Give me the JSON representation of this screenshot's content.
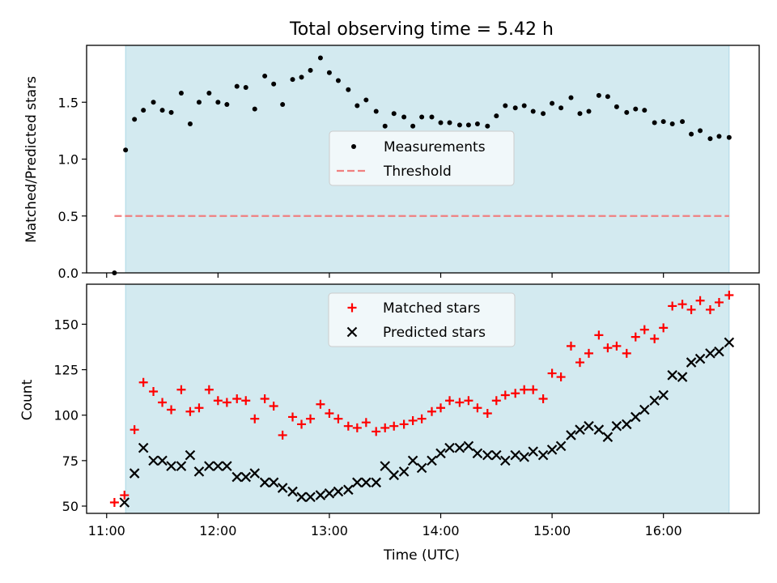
{
  "title": "Total observing time = 5.42 h",
  "chart_data": [
    {
      "type": "scatter",
      "panel": "top",
      "ylabel": "Matched/Predicted stars",
      "xlabel": "",
      "x_unit": "hours (UTC)",
      "xlim": [
        10.82,
        16.86
      ],
      "ylim": [
        0.0,
        2.0
      ],
      "yticks": [
        0.0,
        0.5,
        1.0,
        1.5
      ],
      "ytick_labels": [
        "0.0",
        "0.5",
        "1.0",
        "1.5"
      ],
      "observing_window": [
        11.17,
        16.59
      ],
      "threshold": {
        "name": "Threshold",
        "value": 0.5,
        "x_range": [
          11.07,
          16.59
        ]
      },
      "legend_position": "center",
      "series": [
        {
          "name": "Measurements",
          "marker": "dot",
          "color": "#000000",
          "x": [
            11.07,
            11.17,
            11.25,
            11.33,
            11.42,
            11.5,
            11.58,
            11.67,
            11.75,
            11.83,
            11.92,
            12.0,
            12.08,
            12.17,
            12.25,
            12.33,
            12.42,
            12.5,
            12.58,
            12.67,
            12.75,
            12.83,
            12.92,
            13.0,
            13.08,
            13.17,
            13.25,
            13.33,
            13.42,
            13.5,
            13.58,
            13.67,
            13.75,
            13.83,
            13.92,
            14.0,
            14.08,
            14.17,
            14.25,
            14.33,
            14.42,
            14.5,
            14.58,
            14.67,
            14.75,
            14.83,
            14.92,
            15.0,
            15.08,
            15.17,
            15.25,
            15.33,
            15.42,
            15.5,
            15.58,
            15.67,
            15.75,
            15.83,
            15.92,
            16.0,
            16.08,
            16.17,
            16.25,
            16.33,
            16.42,
            16.5,
            16.59
          ],
          "y": [
            0.0,
            1.08,
            1.35,
            1.43,
            1.5,
            1.43,
            1.41,
            1.58,
            1.31,
            1.5,
            1.58,
            1.5,
            1.48,
            1.64,
            1.63,
            1.44,
            1.73,
            1.66,
            1.48,
            1.7,
            1.72,
            1.78,
            1.89,
            1.76,
            1.69,
            1.61,
            1.47,
            1.52,
            1.42,
            1.29,
            1.4,
            1.37,
            1.29,
            1.37,
            1.37,
            1.32,
            1.32,
            1.3,
            1.3,
            1.31,
            1.29,
            1.38,
            1.47,
            1.45,
            1.47,
            1.42,
            1.4,
            1.49,
            1.45,
            1.54,
            1.4,
            1.42,
            1.56,
            1.55,
            1.46,
            1.41,
            1.44,
            1.43,
            1.32,
            1.33,
            1.31,
            1.33,
            1.22,
            1.25,
            1.18,
            1.2,
            1.19
          ]
        }
      ]
    },
    {
      "type": "scatter",
      "panel": "bottom",
      "ylabel": "Count",
      "xlabel": "Time (UTC)",
      "x_unit": "hours (UTC)",
      "xlim": [
        10.82,
        16.86
      ],
      "ylim": [
        46,
        172
      ],
      "yticks": [
        50,
        75,
        100,
        125,
        150
      ],
      "ytick_labels": [
        "50",
        "75",
        "100",
        "125",
        "150"
      ],
      "xticks": [
        11,
        12,
        13,
        14,
        15,
        16
      ],
      "xtick_labels": [
        "11:00",
        "12:00",
        "13:00",
        "14:00",
        "15:00",
        "16:00"
      ],
      "observing_window": [
        11.17,
        16.59
      ],
      "legend_position": "upper center",
      "series": [
        {
          "name": "Matched stars",
          "marker": "plus",
          "color": "#ff0000",
          "x": [
            11.07,
            11.16,
            11.25,
            11.33,
            11.42,
            11.5,
            11.58,
            11.67,
            11.75,
            11.83,
            11.92,
            12.0,
            12.08,
            12.17,
            12.25,
            12.33,
            12.42,
            12.5,
            12.58,
            12.67,
            12.75,
            12.83,
            12.92,
            13.0,
            13.08,
            13.17,
            13.25,
            13.33,
            13.42,
            13.5,
            13.58,
            13.67,
            13.75,
            13.83,
            13.92,
            14.0,
            14.08,
            14.17,
            14.25,
            14.33,
            14.42,
            14.5,
            14.58,
            14.67,
            14.75,
            14.83,
            14.92,
            15.0,
            15.08,
            15.17,
            15.25,
            15.33,
            15.42,
            15.5,
            15.58,
            15.67,
            15.75,
            15.83,
            15.92,
            16.0,
            16.08,
            16.17,
            16.25,
            16.33,
            16.42,
            16.5,
            16.59
          ],
          "y": [
            52,
            56,
            92,
            118,
            113,
            107,
            103,
            114,
            102,
            104,
            114,
            108,
            107,
            109,
            108,
            98,
            109,
            105,
            89,
            99,
            95,
            98,
            106,
            101,
            98,
            94,
            93,
            96,
            91,
            93,
            94,
            95,
            97,
            98,
            102,
            104,
            108,
            107,
            108,
            104,
            101,
            108,
            111,
            112,
            114,
            114,
            109,
            123,
            121,
            138,
            129,
            134,
            144,
            137,
            138,
            134,
            143,
            147,
            142,
            148,
            160,
            161,
            158,
            163,
            158,
            162,
            166
          ]
        },
        {
          "name": "Predicted stars",
          "marker": "x",
          "color": "#000000",
          "x": [
            11.16,
            11.25,
            11.33,
            11.42,
            11.5,
            11.58,
            11.67,
            11.75,
            11.83,
            11.92,
            12.0,
            12.08,
            12.17,
            12.25,
            12.33,
            12.42,
            12.5,
            12.58,
            12.67,
            12.75,
            12.83,
            12.92,
            13.0,
            13.08,
            13.17,
            13.25,
            13.33,
            13.42,
            13.5,
            13.58,
            13.67,
            13.75,
            13.83,
            13.92,
            14.0,
            14.08,
            14.17,
            14.25,
            14.33,
            14.42,
            14.5,
            14.58,
            14.67,
            14.75,
            14.83,
            14.92,
            15.0,
            15.08,
            15.17,
            15.25,
            15.33,
            15.42,
            15.5,
            15.58,
            15.67,
            15.75,
            15.83,
            15.92,
            16.0,
            16.08,
            16.17,
            16.25,
            16.33,
            16.42,
            16.5,
            16.59
          ],
          "y": [
            52,
            68,
            82,
            75,
            75,
            72,
            72,
            78,
            69,
            72,
            72,
            72,
            66,
            66,
            68,
            63,
            63,
            60,
            58,
            55,
            55,
            56,
            57,
            58,
            59,
            63,
            63,
            63,
            72,
            67,
            69,
            75,
            71,
            75,
            79,
            82,
            82,
            83,
            79,
            78,
            78,
            75,
            78,
            77,
            80,
            78,
            81,
            83,
            89,
            92,
            94,
            92,
            88,
            94,
            95,
            99,
            103,
            108,
            111,
            122,
            121,
            129,
            131,
            134,
            135,
            140
          ]
        }
      ]
    }
  ],
  "colors": {
    "window_fill": "#d3eaf0",
    "window_edge": "#add8e6",
    "threshold": "#f08080",
    "legend_bg": "#f6fafc",
    "legend_edge": "#cccccc"
  }
}
